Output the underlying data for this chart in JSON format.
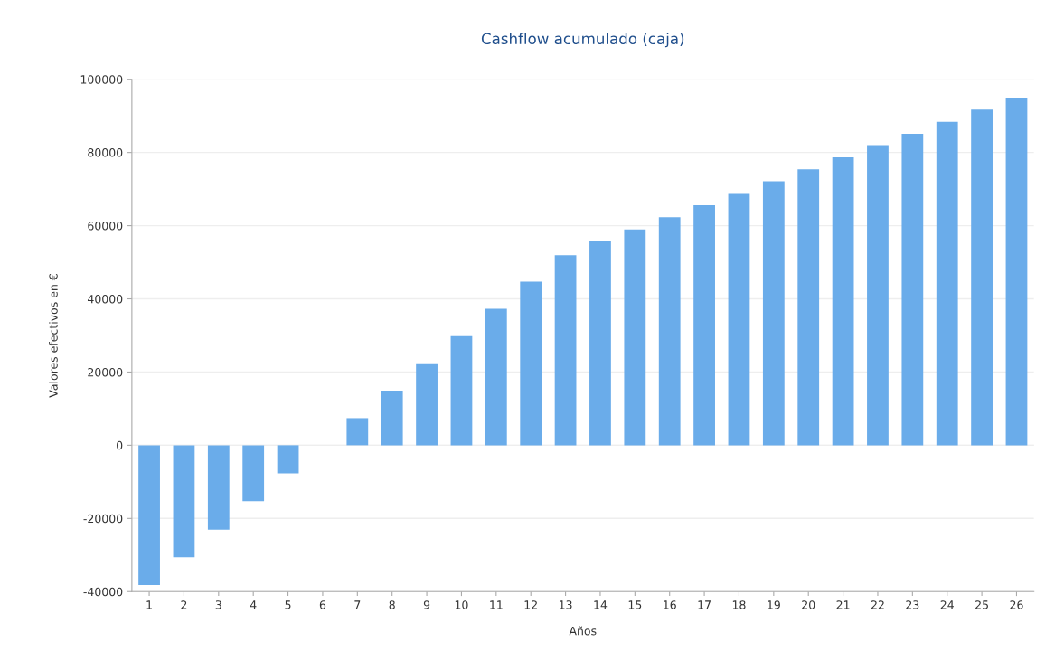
{
  "chart_data": {
    "type": "bar",
    "title": "Cashflow acumulado (caja)",
    "xlabel": "Años",
    "ylabel": "Valores efectivos en €",
    "categories": [
      "1",
      "2",
      "3",
      "4",
      "5",
      "6",
      "7",
      "8",
      "9",
      "10",
      "11",
      "12",
      "13",
      "14",
      "15",
      "16",
      "17",
      "18",
      "19",
      "20",
      "21",
      "22",
      "23",
      "24",
      "25",
      "26"
    ],
    "values": [
      -38200,
      -30600,
      -23100,
      -15300,
      -7700,
      0,
      7400,
      14900,
      22400,
      29800,
      37300,
      44700,
      51900,
      55700,
      59000,
      62300,
      65600,
      68900,
      72100,
      75400,
      78700,
      82000,
      85100,
      88400,
      91700,
      95000
    ],
    "color": "#6aacea",
    "ylim": [
      -40000,
      100000
    ],
    "yticks": [
      -40000,
      -20000,
      0,
      20000,
      40000,
      60000,
      80000,
      100000
    ],
    "grid": "y",
    "legend": false
  }
}
